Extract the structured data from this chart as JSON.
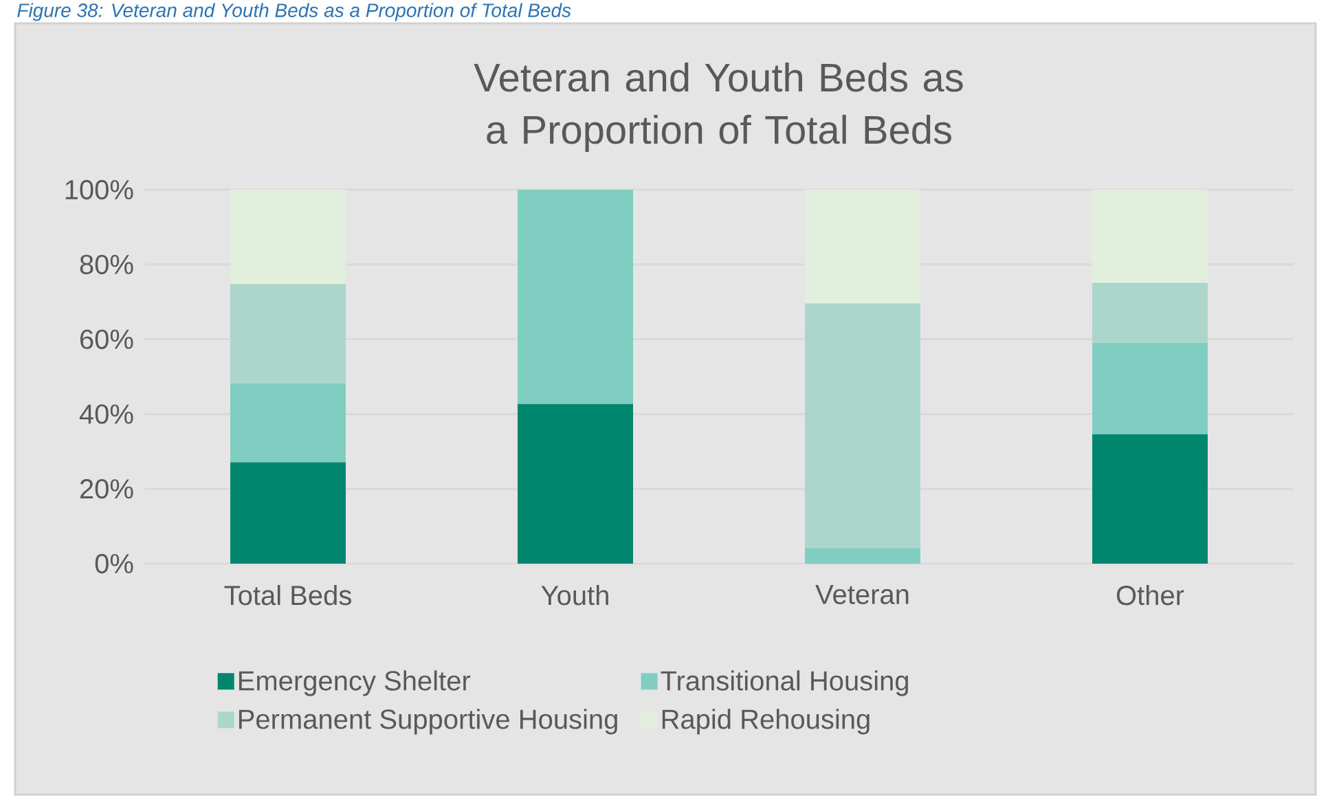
{
  "chart_data": {
    "type": "bar",
    "title": "Veteran and Youth Beds as a Proportion of Total Beds",
    "annotations": [
      "Figure 38: Veteran and Youth Beds as a Proportion of Total Beds"
    ],
    "categories": [
      "Total Beds",
      "Youth",
      "Veteran",
      "Other"
    ],
    "stacked": true,
    "series": [
      {
        "name": "Emergency Shelter",
        "color": "#00856f",
        "values": [
          27.1,
          42.7,
          0,
          34.6
        ]
      },
      {
        "name": "Transitional Housing",
        "color": "#80cdc1",
        "values": [
          21.1,
          57.3,
          4.2,
          24.4
        ]
      },
      {
        "name": "Permanent Supportive Housing",
        "color": "#acd6cc",
        "values": [
          26.6,
          0,
          65.4,
          16.1
        ]
      },
      {
        "name": "Rapid Rehousing",
        "color": "#e2efdc",
        "values": [
          25.2,
          0,
          30.4,
          24.9
        ]
      }
    ],
    "ylim": [
      0,
      100
    ],
    "yticks": [
      {
        "value": 0,
        "label": "0%"
      },
      {
        "value": 20,
        "label": "20%"
      },
      {
        "value": 40,
        "label": "40%"
      },
      {
        "value": 60,
        "label": "60%"
      },
      {
        "value": 80,
        "label": "80%"
      },
      {
        "value": 100,
        "label": "100%"
      }
    ],
    "grid": "y",
    "legend": "bottom"
  }
}
